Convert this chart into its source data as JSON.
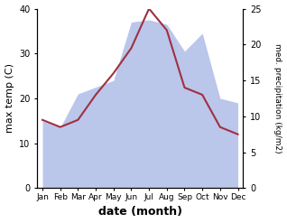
{
  "months": [
    "Jan",
    "Feb",
    "Mar",
    "Apr",
    "May",
    "Jun",
    "Jul",
    "Aug",
    "Sep",
    "Oct",
    "Nov",
    "Dec"
  ],
  "temp_fill_top": [
    15.0,
    13.5,
    21.0,
    22.5,
    24.0,
    37.0,
    37.5,
    36.5,
    30.5,
    34.5,
    20.0,
    19.0
  ],
  "precipitation": [
    9.5,
    8.5,
    9.5,
    13.0,
    16.0,
    19.5,
    25.0,
    22.0,
    14.0,
    13.0,
    8.5,
    7.5
  ],
  "temp_fill_color": "#b0bce8",
  "precip_line_color": "#a03040",
  "ylabel_left": "max temp (C)",
  "ylabel_right": "med. precipitation (kg/m2)",
  "xlabel": "date (month)",
  "ylim_left": [
    0,
    40
  ],
  "ylim_right": [
    0,
    25
  ],
  "yticks_left": [
    0,
    10,
    20,
    30,
    40
  ],
  "yticks_right": [
    0,
    5,
    10,
    15,
    20,
    25
  ]
}
